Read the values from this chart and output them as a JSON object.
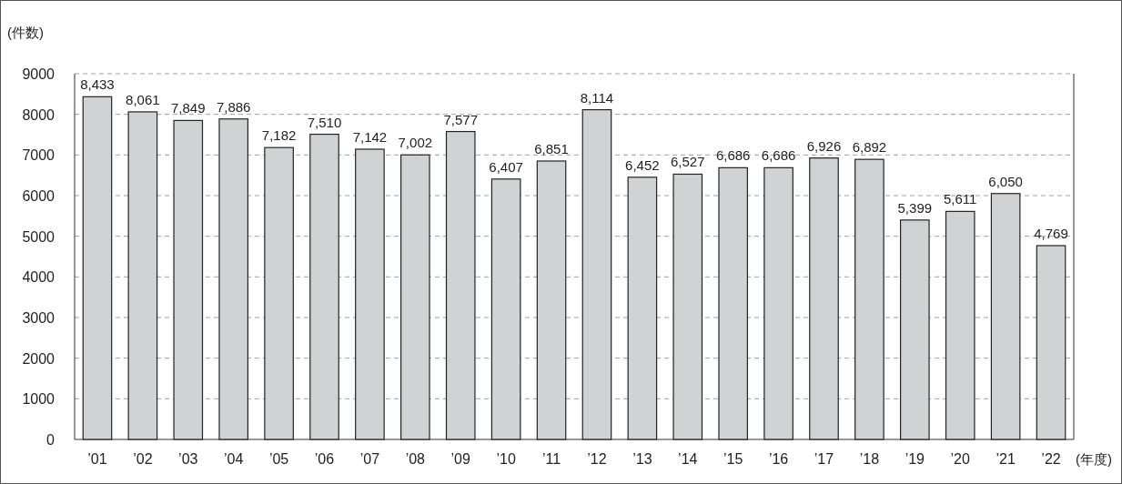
{
  "chart_data": {
    "type": "bar",
    "ylabel": "(件数)",
    "xlabel": "(年度)",
    "categories": [
      "’01",
      "’02",
      "’03",
      "’04",
      "’05",
      "’06",
      "’07",
      "’08",
      "’09",
      "’10",
      "’11",
      "’12",
      "’13",
      "’14",
      "’15",
      "’16",
      "’17",
      "’18",
      "’19",
      "’20",
      "’21",
      "’22"
    ],
    "values": [
      8433,
      8061,
      7849,
      7886,
      7182,
      7510,
      7142,
      7002,
      7577,
      6407,
      6851,
      8114,
      6452,
      6527,
      6686,
      6686,
      6926,
      6892,
      5399,
      5611,
      6050,
      4769
    ],
    "value_labels": [
      "8,433",
      "8,061",
      "7,849",
      "7,886",
      "7,182",
      "7,510",
      "7,142",
      "7,002",
      "7,577",
      "6,407",
      "6,851",
      "8,114",
      "6,452",
      "6,527",
      "6,686",
      "6,686",
      "6,926",
      "6,892",
      "5,399",
      "5,611",
      "6,050",
      "4,769"
    ],
    "color": "#d1d2d4",
    "ylim": [
      0,
      9000
    ],
    "yticks": [
      0,
      1000,
      2000,
      3000,
      4000,
      5000,
      6000,
      7000,
      8000,
      9000
    ],
    "grid": "y"
  }
}
